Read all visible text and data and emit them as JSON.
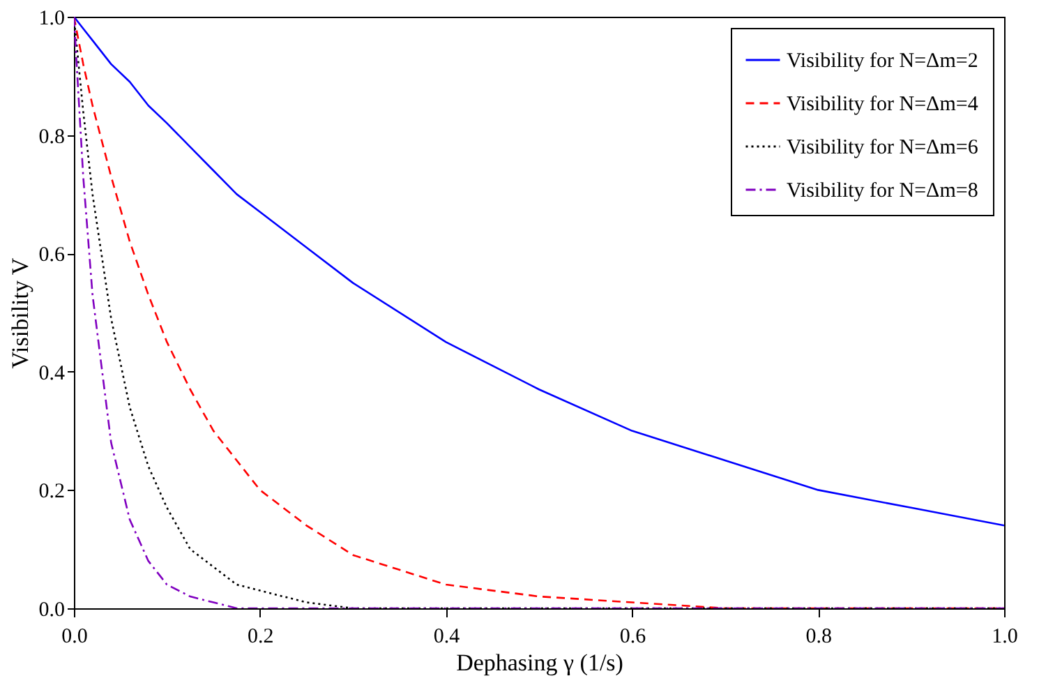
{
  "chart_data": {
    "type": "line",
    "xlabel": "Dephasing γ (1/s)",
    "ylabel": "Visibility V",
    "x": [
      0,
      0.01,
      0.02,
      0.04,
      0.06,
      0.08,
      0.1,
      0.125,
      0.15,
      0.175,
      0.2,
      0.25,
      0.3,
      0.4,
      0.5,
      0.6,
      0.7,
      0.8,
      0.9,
      1.0
    ],
    "series": [
      {
        "name": "Visibility for N=Δm=2",
        "color": "#0000ff",
        "line_style": "solid",
        "values": [
          1,
          0.98,
          0.96,
          0.92,
          0.89,
          0.85,
          0.82,
          0.78,
          0.74,
          0.7,
          0.67,
          0.61,
          0.55,
          0.45,
          0.37,
          0.3,
          0.25,
          0.2,
          0.17,
          0.14
        ]
      },
      {
        "name": "Visibility for N=Δm=4",
        "color": "#ff0000",
        "line_style": "dashed",
        "values": [
          1,
          0.92,
          0.85,
          0.73,
          0.62,
          0.53,
          0.45,
          0.37,
          0.3,
          0.25,
          0.2,
          0.14,
          0.09,
          0.04,
          0.02,
          0.01,
          0,
          0,
          0,
          0
        ]
      },
      {
        "name": "Visibility for N=Δm=6",
        "color": "#000000",
        "line_style": "dotted",
        "values": [
          1,
          0.84,
          0.7,
          0.49,
          0.34,
          0.24,
          0.17,
          0.1,
          0.07,
          0.04,
          0.03,
          0.01,
          0,
          0,
          0,
          0,
          0,
          0,
          0,
          0
        ]
      },
      {
        "name": "Visibility for N=Δm=8",
        "color": "#8000c0",
        "line_style": "dashdot",
        "values": [
          1,
          0.73,
          0.53,
          0.28,
          0.15,
          0.08,
          0.04,
          0.02,
          0.01,
          0,
          0,
          0,
          0,
          0,
          0,
          0,
          0,
          0,
          0,
          0
        ]
      }
    ],
    "xlim": [
      0,
      1.0
    ],
    "ylim": [
      0,
      1.0
    ],
    "xticks": [
      {
        "value": 0,
        "label": "0.0"
      },
      0.2,
      0.4,
      0.6,
      0.8,
      {
        "value": 1,
        "label": "1.0"
      }
    ],
    "yticks": [
      {
        "value": 0,
        "label": "0.0"
      },
      0.2,
      0.4,
      0.6,
      0.8,
      {
        "value": 1,
        "label": "1.0"
      }
    ],
    "grid": false,
    "legend": "top right"
  }
}
